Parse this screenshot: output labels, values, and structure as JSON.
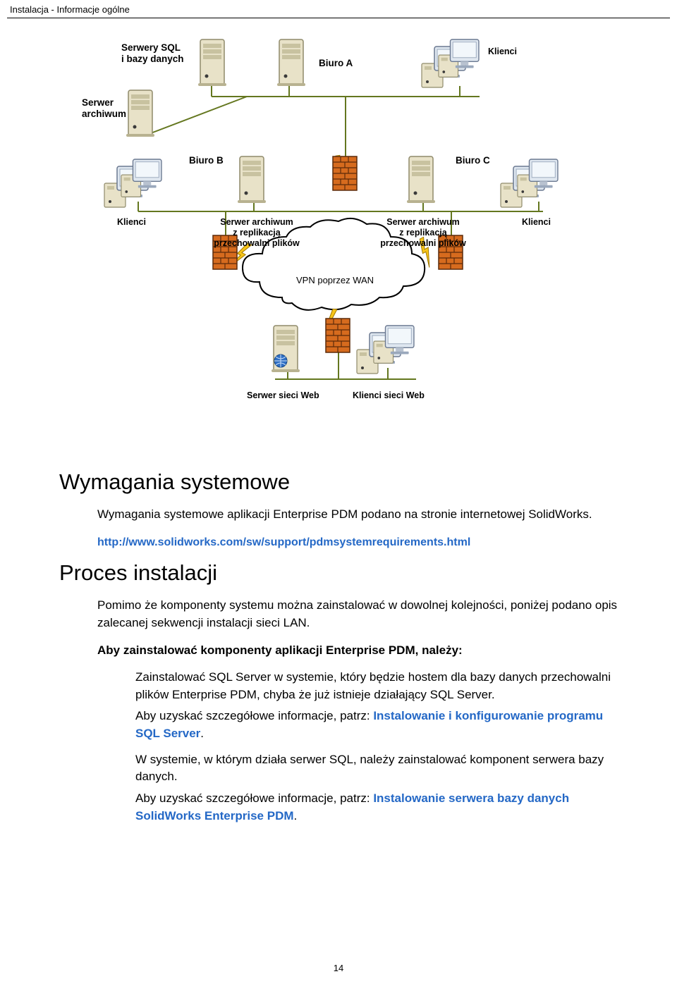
{
  "breadcrumb": "Instalacja - Informacje ogólne",
  "diagram": {
    "labels": {
      "sql_servers": "Serwery SQL\ni bazy danych",
      "biuro_a": "Biuro A",
      "klienci_top": "Klienci",
      "serwer_archiwum": "Serwer\narchiwum",
      "biuro_b": "Biuro B",
      "biuro_c": "Biuro C",
      "klienci_left": "Klienci",
      "archive_repl_left": "Serwer archiwum\nz replikacją\nprzechowalni plików",
      "archive_repl_right": "Serwer archiwum\nz replikacją\nprzechowalni plików",
      "klienci_right": "Klienci",
      "vpn": "VPN poprzez WAN",
      "web_server": "Serwer sieci Web",
      "web_clients": "Klienci sieci Web"
    },
    "colors": {
      "line": "#64771f",
      "line_alt": "#7a8a2e",
      "lightning": "#f6c41a",
      "lightning_stroke": "#a07800",
      "firewall": "#d66b1e",
      "firewall_mortar": "#5c2b0a",
      "server_beige": "#e8e2c8",
      "server_shadow": "#b8b290",
      "monitor": "#dfe7f0",
      "monitor_edge": "#6a7890",
      "cloud_fill": "#ffffff",
      "cloud_stroke": "#000000",
      "globe": "#2f6fc4"
    }
  },
  "sections": {
    "h1a": "Wymagania systemowe",
    "p1": "Wymagania systemowe aplikacji Enterprise PDM podano na stronie internetowej SolidWorks.",
    "url": "http://www.solidworks.com/sw/support/pdmsystemrequirements.html",
    "h1b": "Proces instalacji",
    "p2": "Pomimo że komponenty systemu można zainstalować w dowolnej kolejności, poniżej podano opis zalecanej sekwencji instalacji sieci LAN.",
    "p3": "Aby zainstalować komponenty aplikacji Enterprise PDM, należy:",
    "p4": "Zainstalować SQL Server w systemie, który będzie hostem dla bazy danych przechowalni plików Enterprise PDM, chyba że już istnieje działający SQL Server.",
    "p5a": "Aby uzyskać szczegółowe informacje, patrz: ",
    "p5link": "Instalowanie i konfigurowanie programu SQL Server",
    "p5b": ".",
    "p6": "W systemie, w którym działa serwer SQL, należy zainstalować komponent serwera bazy danych.",
    "p7a": "Aby uzyskać szczegółowe informacje, patrz: ",
    "p7link": "Instalowanie serwera bazy danych SolidWorks Enterprise PDM",
    "p7b": "."
  },
  "page_number": "14"
}
